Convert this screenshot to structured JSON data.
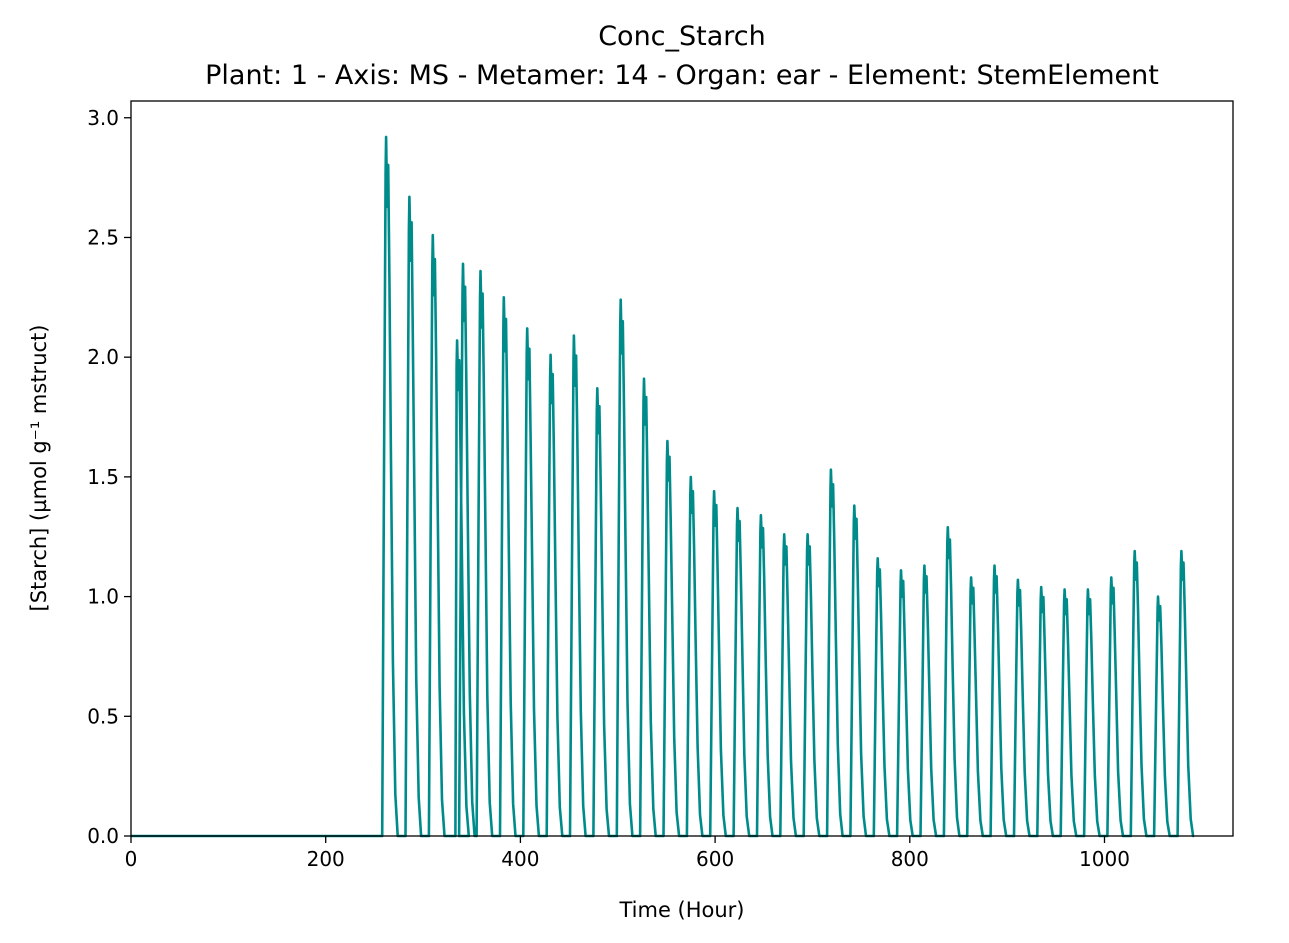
{
  "chart_data": {
    "type": "line",
    "title": "Conc_Starch",
    "subtitle": "Plant: 1 - Axis: MS - Metamer: 14 - Organ: ear - Element: StemElement",
    "xlabel": "Time (Hour)",
    "ylabel": "[Starch] (µmol g⁻¹ mstruct)",
    "xlim": [
      0,
      1132
    ],
    "ylim": [
      0,
      3.07
    ],
    "xticks": [
      0,
      200,
      400,
      600,
      800,
      1000
    ],
    "yticks": [
      0.0,
      0.5,
      1.0,
      1.5,
      2.0,
      2.5,
      3.0
    ],
    "xtick_labels": [
      "0",
      "200",
      "400",
      "600",
      "800",
      "1000"
    ],
    "ytick_labels": [
      "0.0",
      "0.5",
      "1.0",
      "1.5",
      "2.0",
      "2.5",
      "3.0"
    ],
    "grid": false,
    "series_color": "#008b8b",
    "start_hour": 255,
    "end_hour": 1092,
    "series": [
      {
        "peaks": [
          {
            "x": 262,
            "y": 2.92
          },
          {
            "x": 286,
            "y": 2.67
          },
          {
            "x": 310,
            "y": 2.51
          },
          {
            "x": 335,
            "y": 2.07
          },
          {
            "x": 341,
            "y": 2.39
          },
          {
            "x": 359,
            "y": 2.36
          },
          {
            "x": 383,
            "y": 2.25
          },
          {
            "x": 407,
            "y": 2.12
          },
          {
            "x": 431,
            "y": 2.01
          },
          {
            "x": 455,
            "y": 2.09
          },
          {
            "x": 479,
            "y": 1.87
          },
          {
            "x": 503,
            "y": 2.24
          },
          {
            "x": 527,
            "y": 1.91
          },
          {
            "x": 551,
            "y": 1.65
          },
          {
            "x": 575,
            "y": 1.5
          },
          {
            "x": 599,
            "y": 1.44
          },
          {
            "x": 623,
            "y": 1.37
          },
          {
            "x": 647,
            "y": 1.34
          },
          {
            "x": 671,
            "y": 1.26
          },
          {
            "x": 695,
            "y": 1.26
          },
          {
            "x": 719,
            "y": 1.53
          },
          {
            "x": 743,
            "y": 1.38
          },
          {
            "x": 767,
            "y": 1.16
          },
          {
            "x": 791,
            "y": 1.11
          },
          {
            "x": 815,
            "y": 1.13
          },
          {
            "x": 839,
            "y": 1.29
          },
          {
            "x": 863,
            "y": 1.08
          },
          {
            "x": 887,
            "y": 1.13
          },
          {
            "x": 911,
            "y": 1.07
          },
          {
            "x": 935,
            "y": 1.04
          },
          {
            "x": 959,
            "y": 1.03
          },
          {
            "x": 983,
            "y": 1.03
          },
          {
            "x": 1007,
            "y": 1.08
          },
          {
            "x": 1031,
            "y": 1.19
          },
          {
            "x": 1055,
            "y": 1.0
          },
          {
            "x": 1079,
            "y": 1.19
          }
        ]
      }
    ]
  }
}
